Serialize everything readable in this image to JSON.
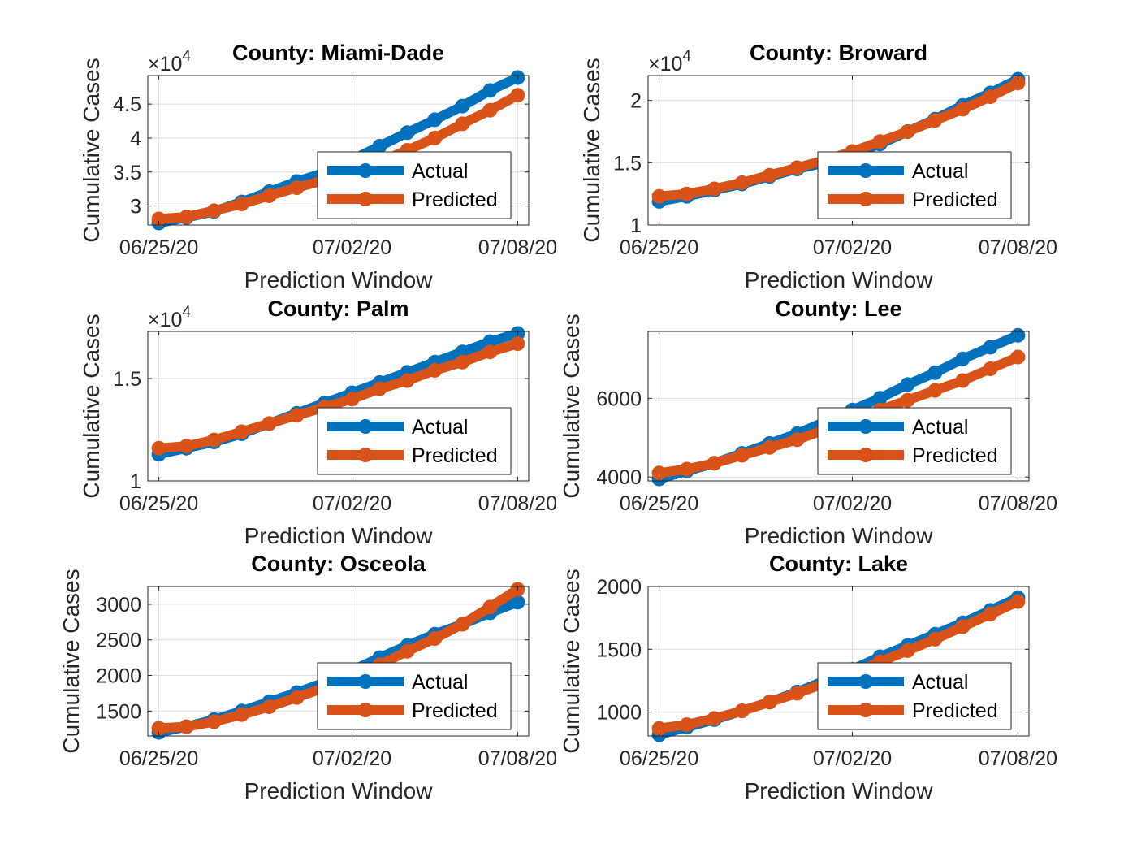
{
  "figure": {
    "background": "#ffffff",
    "colors": {
      "actual": "#0072BD",
      "predicted": "#D95319",
      "grid": "#dedede",
      "axis": "#262626"
    }
  },
  "chart_data": [
    {
      "type": "line",
      "title": "County: Miami-Dade",
      "xlabel": "Prediction Window",
      "ylabel": "Cumulative Cases",
      "exponent": "4",
      "x": [
        "06/25/20",
        "06/26/20",
        "06/27/20",
        "06/28/20",
        "06/29/20",
        "06/30/20",
        "07/01/20",
        "07/02/20",
        "07/03/20",
        "07/04/20",
        "07/05/20",
        "07/06/20",
        "07/07/20",
        "07/08/20"
      ],
      "xticks": [
        "06/25/20",
        "07/02/20",
        "07/08/20"
      ],
      "ylim": [
        27200,
        49200
      ],
      "yticks": [
        30000,
        35000,
        40000,
        45000
      ],
      "yticklabels": [
        "3",
        "3.5",
        "4",
        "4.5"
      ],
      "grid": true,
      "legend": {
        "position": "bottom-right",
        "entries": [
          "Actual",
          "Predicted"
        ]
      },
      "series": [
        {
          "name": "Actual",
          "values": [
            27500,
            28300,
            29200,
            30600,
            32100,
            33600,
            34900,
            36800,
            38800,
            40800,
            42700,
            44700,
            47000,
            48900
          ]
        },
        {
          "name": "Predicted",
          "values": [
            28100,
            28400,
            29300,
            30300,
            31500,
            32700,
            33800,
            35000,
            36500,
            38200,
            40000,
            42100,
            44100,
            46300
          ]
        }
      ]
    },
    {
      "type": "line",
      "title": "County: Broward",
      "xlabel": "Prediction Window",
      "ylabel": "Cumulative Cases",
      "exponent": "4",
      "x": [
        "06/25/20",
        "06/26/20",
        "06/27/20",
        "06/28/20",
        "06/29/20",
        "06/30/20",
        "07/01/20",
        "07/02/20",
        "07/03/20",
        "07/04/20",
        "07/05/20",
        "07/06/20",
        "07/07/20",
        "07/08/20"
      ],
      "xticks": [
        "06/25/20",
        "07/02/20",
        "07/08/20"
      ],
      "ylim": [
        10000,
        22000
      ],
      "yticks": [
        10000,
        15000,
        20000
      ],
      "yticklabels": [
        "1",
        "1.5",
        "2"
      ],
      "grid": true,
      "legend": {
        "position": "bottom-right",
        "entries": [
          "Actual",
          "Predicted"
        ]
      },
      "series": [
        {
          "name": "Actual",
          "values": [
            11900,
            12300,
            12800,
            13300,
            13900,
            14500,
            15000,
            15700,
            16500,
            17500,
            18500,
            19600,
            20600,
            21700
          ]
        },
        {
          "name": "Predicted",
          "values": [
            12300,
            12500,
            12900,
            13400,
            14000,
            14600,
            15200,
            15900,
            16700,
            17500,
            18400,
            19300,
            20300,
            21400
          ]
        }
      ]
    },
    {
      "type": "line",
      "title": "County: Palm",
      "xlabel": "Prediction Window",
      "ylabel": "Cumulative Cases",
      "exponent": "4",
      "x": [
        "06/25/20",
        "06/26/20",
        "06/27/20",
        "06/28/20",
        "06/29/20",
        "06/30/20",
        "07/01/20",
        "07/02/20",
        "07/03/20",
        "07/04/20",
        "07/05/20",
        "07/06/20",
        "07/07/20",
        "07/08/20"
      ],
      "xticks": [
        "06/25/20",
        "07/02/20",
        "07/08/20"
      ],
      "ylim": [
        10000,
        17300
      ],
      "yticks": [
        10000,
        15000
      ],
      "yticklabels": [
        "1",
        "1.5"
      ],
      "grid": true,
      "legend": {
        "position": "bottom-right",
        "entries": [
          "Actual",
          "Predicted"
        ]
      },
      "series": [
        {
          "name": "Actual",
          "values": [
            11300,
            11600,
            11900,
            12300,
            12800,
            13300,
            13800,
            14300,
            14800,
            15300,
            15800,
            16300,
            16800,
            17200
          ]
        },
        {
          "name": "Predicted",
          "values": [
            11600,
            11700,
            12000,
            12400,
            12800,
            13200,
            13600,
            14000,
            14500,
            14900,
            15400,
            15800,
            16300,
            16700
          ]
        }
      ]
    },
    {
      "type": "line",
      "title": "County: Lee",
      "xlabel": "Prediction Window",
      "ylabel": "Cumulative Cases",
      "exponent": "",
      "x": [
        "06/25/20",
        "06/26/20",
        "06/27/20",
        "06/28/20",
        "06/29/20",
        "06/30/20",
        "07/01/20",
        "07/02/20",
        "07/03/20",
        "07/04/20",
        "07/05/20",
        "07/06/20",
        "07/07/20",
        "07/08/20"
      ],
      "xticks": [
        "06/25/20",
        "07/02/20",
        "07/08/20"
      ],
      "ylim": [
        3900,
        7700
      ],
      "yticks": [
        4000,
        6000
      ],
      "yticklabels": [
        "4000",
        "6000"
      ],
      "grid": true,
      "legend": {
        "position": "bottom-right",
        "entries": [
          "Actual",
          "Predicted"
        ]
      },
      "series": [
        {
          "name": "Actual",
          "values": [
            3950,
            4150,
            4350,
            4600,
            4850,
            5100,
            5400,
            5700,
            6000,
            6350,
            6650,
            7000,
            7300,
            7600
          ]
        },
        {
          "name": "Predicted",
          "values": [
            4100,
            4200,
            4350,
            4550,
            4750,
            4950,
            5200,
            5450,
            5700,
            5950,
            6200,
            6450,
            6750,
            7050
          ]
        }
      ]
    },
    {
      "type": "line",
      "title": "County: Osceola",
      "xlabel": "Prediction Window",
      "ylabel": "Cumulative Cases",
      "exponent": "",
      "x": [
        "06/25/20",
        "06/26/20",
        "06/27/20",
        "06/28/20",
        "06/29/20",
        "06/30/20",
        "07/01/20",
        "07/02/20",
        "07/03/20",
        "07/04/20",
        "07/05/20",
        "07/06/20",
        "07/07/20",
        "07/08/20"
      ],
      "xticks": [
        "06/25/20",
        "07/02/20",
        "07/08/20"
      ],
      "ylim": [
        1150,
        3250
      ],
      "yticks": [
        1500,
        2000,
        2500,
        3000
      ],
      "yticklabels": [
        "1500",
        "2000",
        "2500",
        "3000"
      ],
      "grid": true,
      "legend": {
        "position": "bottom-right",
        "entries": [
          "Actual",
          "Predicted"
        ]
      },
      "series": [
        {
          "name": "Actual",
          "values": [
            1200,
            1280,
            1380,
            1500,
            1630,
            1760,
            1900,
            2070,
            2250,
            2420,
            2580,
            2720,
            2880,
            3030
          ]
        },
        {
          "name": "Predicted",
          "values": [
            1260,
            1280,
            1350,
            1450,
            1560,
            1690,
            1830,
            1980,
            2150,
            2340,
            2520,
            2720,
            2960,
            3210
          ]
        }
      ]
    },
    {
      "type": "line",
      "title": "County: Lake",
      "xlabel": "Prediction Window",
      "ylabel": "Cumulative Cases",
      "exponent": "",
      "x": [
        "06/25/20",
        "06/26/20",
        "06/27/20",
        "06/28/20",
        "06/29/20",
        "06/30/20",
        "07/01/20",
        "07/02/20",
        "07/03/20",
        "07/04/20",
        "07/05/20",
        "07/06/20",
        "07/07/20",
        "07/08/20"
      ],
      "xticks": [
        "06/25/20",
        "07/02/20",
        "07/08/20"
      ],
      "ylim": [
        810,
        2000
      ],
      "yticks": [
        1000,
        1500,
        2000
      ],
      "yticklabels": [
        "1000",
        "1500",
        "2000"
      ],
      "grid": true,
      "legend": {
        "position": "bottom-right",
        "entries": [
          "Actual",
          "Predicted"
        ]
      },
      "series": [
        {
          "name": "Actual",
          "values": [
            820,
            880,
            940,
            1010,
            1080,
            1160,
            1250,
            1340,
            1440,
            1530,
            1620,
            1710,
            1810,
            1910
          ]
        },
        {
          "name": "Predicted",
          "values": [
            870,
            900,
            950,
            1010,
            1080,
            1150,
            1230,
            1310,
            1400,
            1490,
            1580,
            1680,
            1780,
            1880
          ]
        }
      ]
    }
  ]
}
